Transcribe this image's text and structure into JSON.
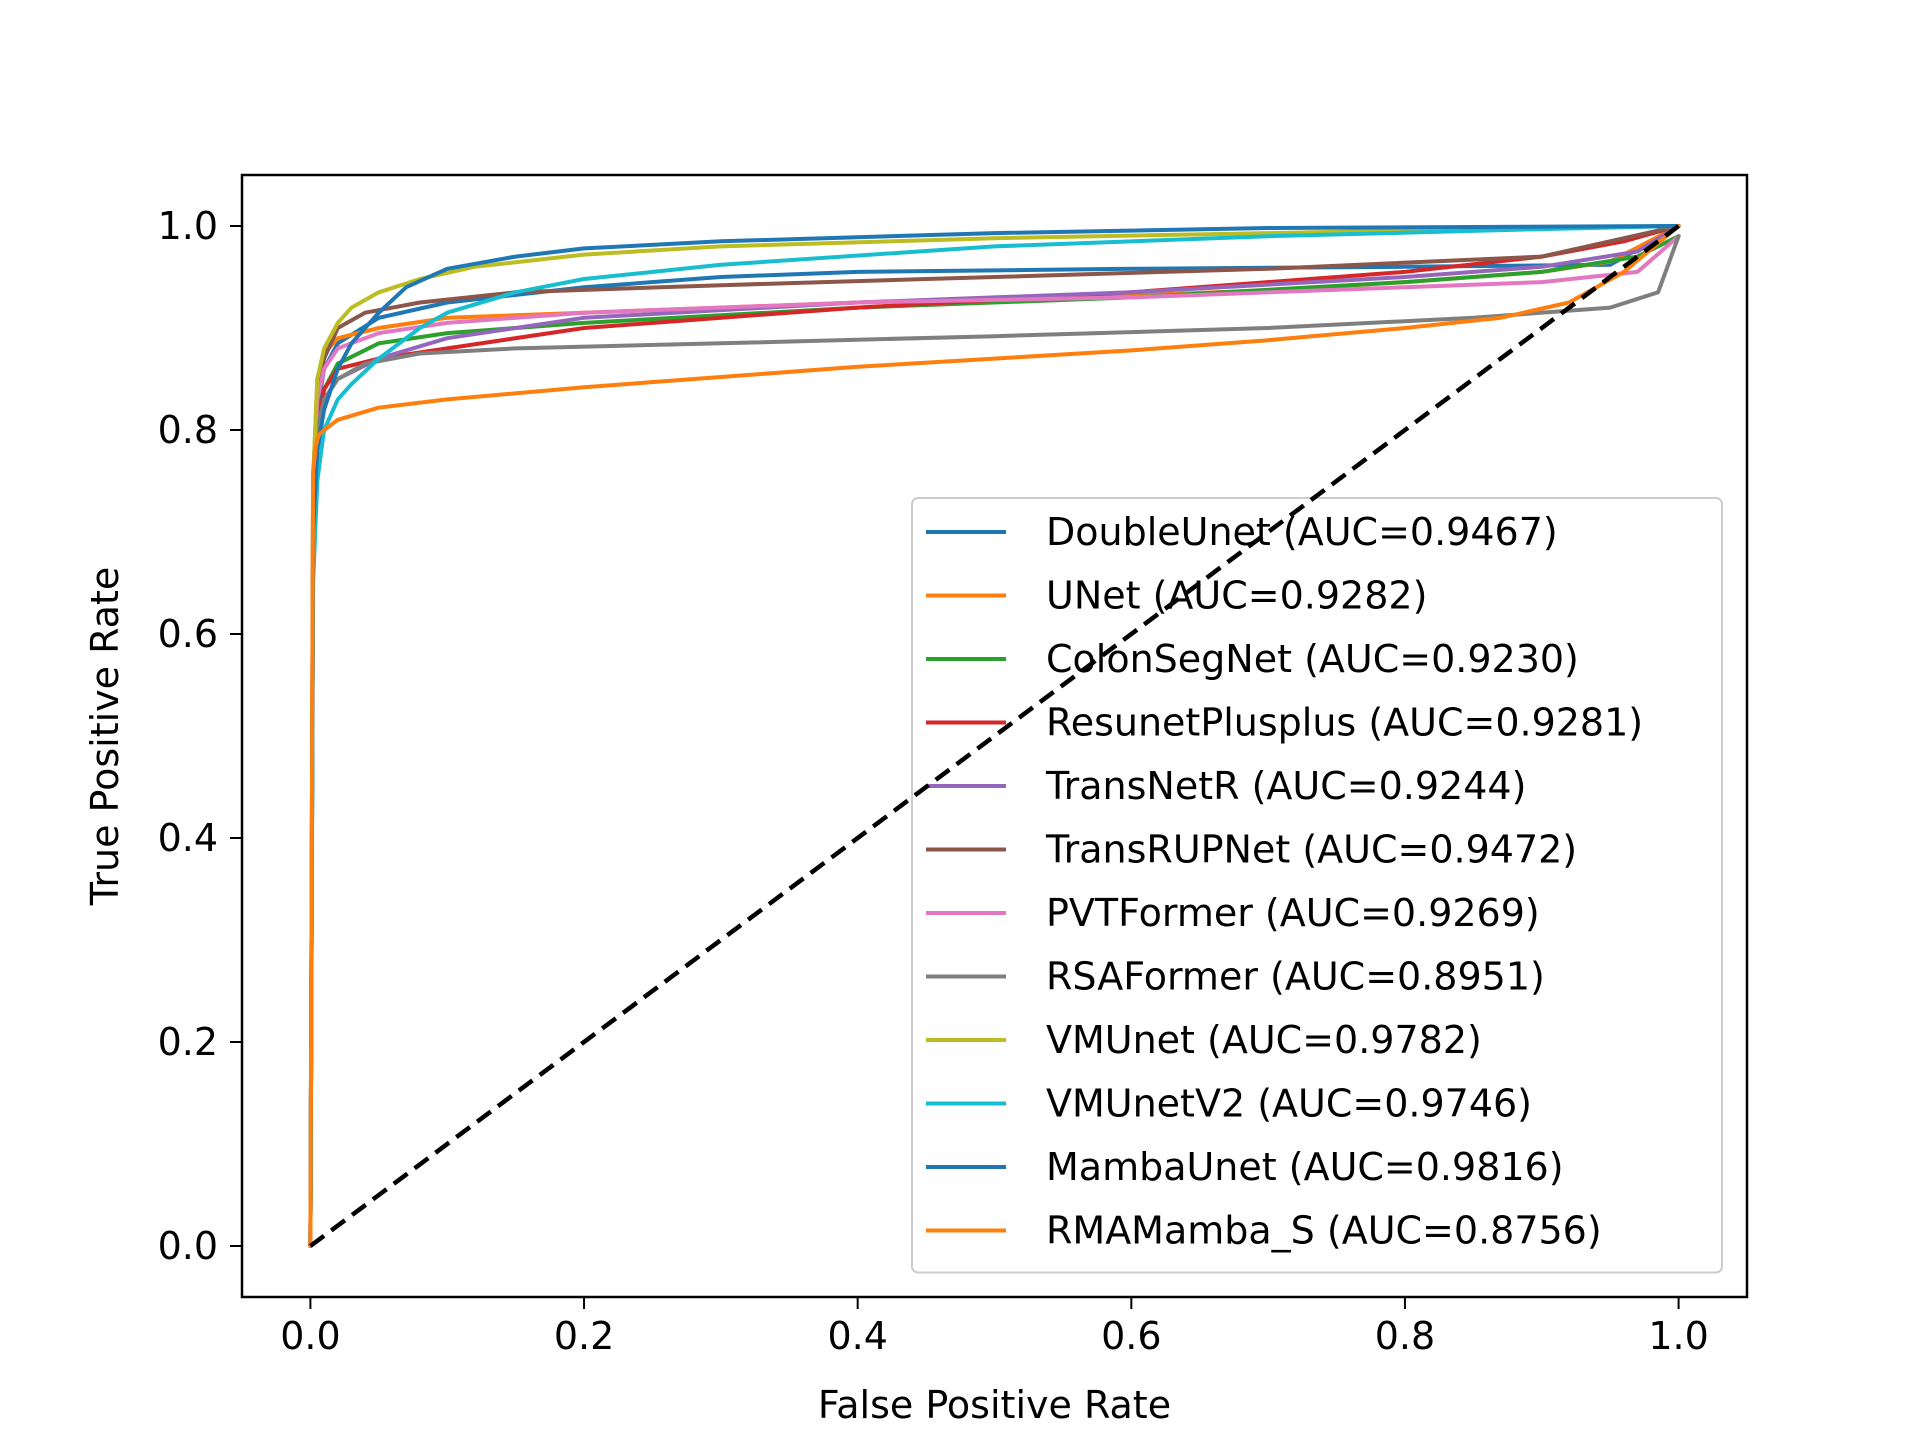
{
  "chart_data": {
    "type": "line",
    "title": "",
    "xlabel": "False Positive Rate",
    "ylabel": "True Positive Rate",
    "xlim": [
      -0.05,
      1.05
    ],
    "ylim": [
      -0.05,
      1.05
    ],
    "xticks": [
      0.0,
      0.2,
      0.4,
      0.6,
      0.8,
      1.0
    ],
    "yticks": [
      0.0,
      0.2,
      0.4,
      0.6,
      0.8,
      1.0
    ],
    "tick_labels_x": [
      "0.0",
      "0.2",
      "0.4",
      "0.6",
      "0.8",
      "1.0"
    ],
    "tick_labels_y": [
      "0.0",
      "0.2",
      "0.4",
      "0.6",
      "0.8",
      "1.0"
    ],
    "grid": false,
    "legend_position": "lower-right",
    "series": [
      {
        "name": "DoubleUnet (AUC=0.9467)",
        "color": "#1f77b4",
        "x": [
          0,
          0.002,
          0.005,
          0.01,
          0.02,
          0.05,
          0.1,
          0.2,
          0.3,
          0.4,
          0.6,
          0.8,
          0.95,
          1.0
        ],
        "y": [
          0,
          0.7,
          0.82,
          0.86,
          0.885,
          0.91,
          0.925,
          0.94,
          0.95,
          0.955,
          0.958,
          0.96,
          0.962,
          1.0
        ]
      },
      {
        "name": "UNet (AUC=0.9282)",
        "color": "#ff7f0e",
        "x": [
          0,
          0.002,
          0.005,
          0.01,
          0.02,
          0.05,
          0.1,
          0.2,
          0.3,
          0.4,
          0.5,
          0.6,
          0.7,
          0.8,
          0.9,
          0.95,
          1.0
        ],
        "y": [
          0,
          0.75,
          0.85,
          0.875,
          0.89,
          0.9,
          0.91,
          0.915,
          0.92,
          0.925,
          0.928,
          0.932,
          0.937,
          0.945,
          0.955,
          0.965,
          1.0
        ]
      },
      {
        "name": "ColonSegNet (AUC=0.9230)",
        "color": "#2ca02c",
        "x": [
          0,
          0.002,
          0.005,
          0.01,
          0.02,
          0.05,
          0.1,
          0.2,
          0.4,
          0.6,
          0.8,
          0.9,
          0.97,
          1.0
        ],
        "y": [
          0,
          0.7,
          0.8,
          0.84,
          0.865,
          0.885,
          0.895,
          0.905,
          0.92,
          0.93,
          0.945,
          0.955,
          0.97,
          0.99
        ]
      },
      {
        "name": "ResunetPlusplus (AUC=0.9281)",
        "color": "#d62728",
        "x": [
          0,
          0.002,
          0.005,
          0.01,
          0.02,
          0.05,
          0.1,
          0.2,
          0.4,
          0.6,
          0.8,
          0.9,
          0.96,
          1.0
        ],
        "y": [
          0,
          0.7,
          0.8,
          0.84,
          0.86,
          0.87,
          0.88,
          0.9,
          0.92,
          0.935,
          0.955,
          0.97,
          0.985,
          1.0
        ]
      },
      {
        "name": "TransNetR (AUC=0.9244)",
        "color": "#9467bd",
        "x": [
          0,
          0.002,
          0.005,
          0.01,
          0.02,
          0.05,
          0.1,
          0.2,
          0.4,
          0.6,
          0.8,
          0.9,
          0.97,
          1.0
        ],
        "y": [
          0,
          0.7,
          0.8,
          0.83,
          0.85,
          0.87,
          0.89,
          0.91,
          0.925,
          0.935,
          0.95,
          0.96,
          0.975,
          1.0
        ]
      },
      {
        "name": "TransRUPNet (AUC=0.9472)",
        "color": "#8c564b",
        "x": [
          0,
          0.002,
          0.005,
          0.01,
          0.02,
          0.04,
          0.08,
          0.15,
          0.3,
          0.5,
          0.7,
          0.9,
          1.0
        ],
        "y": [
          0,
          0.75,
          0.84,
          0.87,
          0.9,
          0.915,
          0.925,
          0.935,
          0.942,
          0.95,
          0.958,
          0.97,
          1.0
        ]
      },
      {
        "name": "PVTFormer (AUC=0.9269)",
        "color": "#e377c2",
        "x": [
          0,
          0.002,
          0.005,
          0.01,
          0.02,
          0.05,
          0.1,
          0.2,
          0.4,
          0.6,
          0.8,
          0.9,
          0.97,
          1.0
        ],
        "y": [
          0,
          0.75,
          0.83,
          0.86,
          0.88,
          0.895,
          0.905,
          0.915,
          0.925,
          0.93,
          0.94,
          0.945,
          0.955,
          0.99
        ]
      },
      {
        "name": "RSAFormer (AUC=0.8951)",
        "color": "#7f7f7f",
        "x": [
          0,
          0.002,
          0.005,
          0.01,
          0.02,
          0.04,
          0.08,
          0.15,
          0.3,
          0.5,
          0.7,
          0.85,
          0.95,
          0.985,
          1.0
        ],
        "y": [
          0,
          0.7,
          0.8,
          0.83,
          0.85,
          0.865,
          0.875,
          0.88,
          0.885,
          0.892,
          0.9,
          0.91,
          0.92,
          0.935,
          0.99
        ]
      },
      {
        "name": "VMUnet (AUC=0.9782)",
        "color": "#bcbd22",
        "x": [
          0,
          0.002,
          0.005,
          0.01,
          0.02,
          0.03,
          0.05,
          0.08,
          0.12,
          0.2,
          0.3,
          0.5,
          0.7,
          0.9,
          1.0
        ],
        "y": [
          0,
          0.75,
          0.85,
          0.88,
          0.905,
          0.92,
          0.935,
          0.948,
          0.96,
          0.972,
          0.98,
          0.988,
          0.993,
          0.998,
          1.0
        ]
      },
      {
        "name": "VMUnetV2 (AUC=0.9746)",
        "color": "#17becf",
        "x": [
          0,
          0.002,
          0.005,
          0.01,
          0.02,
          0.03,
          0.05,
          0.08,
          0.1,
          0.15,
          0.2,
          0.3,
          0.5,
          0.7,
          0.9,
          1.0
        ],
        "y": [
          0,
          0.65,
          0.75,
          0.8,
          0.83,
          0.845,
          0.87,
          0.9,
          0.915,
          0.935,
          0.948,
          0.962,
          0.98,
          0.99,
          0.997,
          1.0
        ]
      },
      {
        "name": "MambaUnet (AUC=0.9816)",
        "color": "#1f77b4",
        "x": [
          0,
          0.002,
          0.005,
          0.01,
          0.02,
          0.03,
          0.05,
          0.07,
          0.1,
          0.15,
          0.2,
          0.3,
          0.5,
          0.7,
          1.0
        ],
        "y": [
          0,
          0.7,
          0.78,
          0.82,
          0.86,
          0.885,
          0.915,
          0.94,
          0.958,
          0.97,
          0.978,
          0.985,
          0.993,
          0.998,
          1.0
        ]
      },
      {
        "name": "RMAMamba_S (AUC=0.8756)",
        "color": "#ff7f0e",
        "x": [
          0,
          0.002,
          0.004,
          0.006,
          0.01,
          0.02,
          0.05,
          0.1,
          0.2,
          0.3,
          0.4,
          0.5,
          0.6,
          0.7,
          0.8,
          0.87,
          0.92,
          0.96,
          1.0
        ],
        "y": [
          0,
          0.76,
          0.785,
          0.795,
          0.8,
          0.81,
          0.822,
          0.83,
          0.842,
          0.852,
          0.862,
          0.87,
          0.878,
          0.888,
          0.9,
          0.91,
          0.925,
          0.955,
          1.0
        ]
      }
    ],
    "diagonal": {
      "x": [
        0,
        1
      ],
      "y": [
        0,
        1
      ],
      "color": "#000000",
      "style": "dashed"
    }
  }
}
